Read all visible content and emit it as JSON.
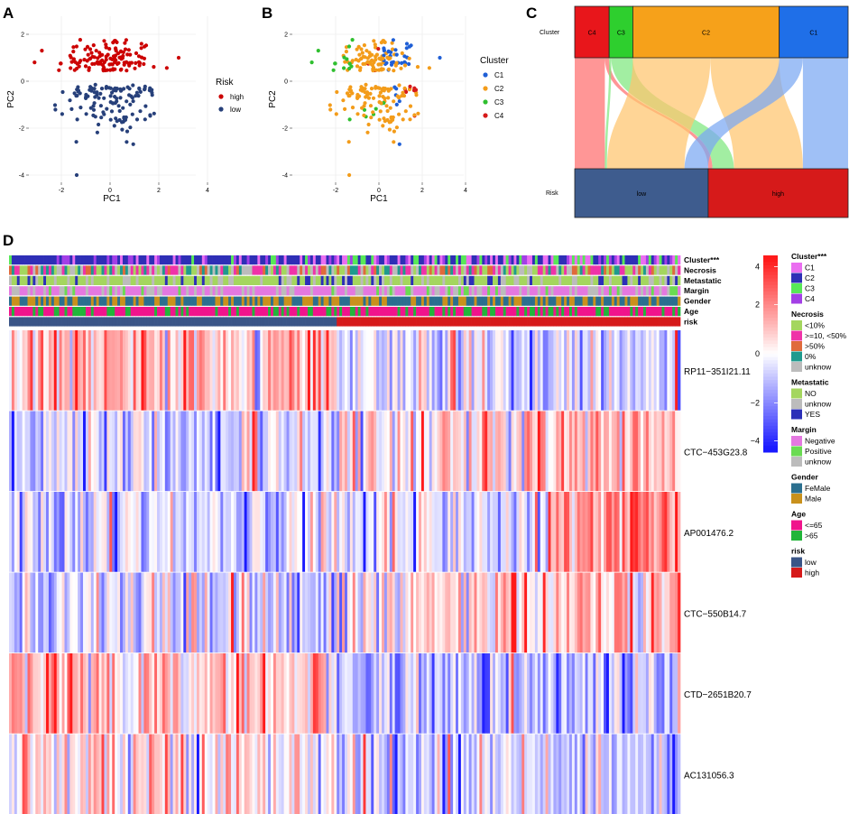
{
  "panels": {
    "a": "A",
    "b": "B",
    "c": "C",
    "d": "D"
  },
  "chart_data": [
    {
      "type": "scatter",
      "panel": "A",
      "xlabel": "PC1",
      "ylabel": "PC2",
      "xlim": [
        -3.4,
        4.1
      ],
      "ylim": [
        -4.3,
        2.7
      ],
      "xticks": [
        "-2",
        "0",
        "2",
        "4"
      ],
      "yticks": [
        "2",
        "0",
        "-2",
        "-4"
      ],
      "grid": true,
      "legend_title": "Risk",
      "legend_position": "right",
      "series": [
        {
          "name": "high",
          "color": "#cc0000",
          "n": 130
        },
        {
          "name": "low",
          "color": "#27407a",
          "n": 124
        }
      ]
    },
    {
      "type": "scatter",
      "panel": "B",
      "xlabel": "PC1",
      "ylabel": "PC2",
      "xlim": [
        -3.4,
        4.1
      ],
      "ylim": [
        -4.3,
        2.7
      ],
      "xticks": [
        "-2",
        "0",
        "2",
        "4"
      ],
      "yticks": [
        "2",
        "0",
        "-2",
        "-4"
      ],
      "grid": true,
      "legend_title": "Cluster",
      "legend_position": "right",
      "series": [
        {
          "name": "C1",
          "color": "#1f5fd6",
          "n": 64
        },
        {
          "name": "C2",
          "color": "#f39c1a",
          "n": 136
        },
        {
          "name": "C3",
          "color": "#2fbf2f",
          "n": 22
        },
        {
          "name": "C4",
          "color": "#d61a1a",
          "n": 32
        }
      ]
    },
    {
      "type": "sankey",
      "panel": "C",
      "axes": [
        "Cluster",
        "Risk"
      ],
      "top_nodes": [
        {
          "name": "C4",
          "color": "#e8161b",
          "value": 32
        },
        {
          "name": "C3",
          "color": "#2ecf2e",
          "value": 22
        },
        {
          "name": "C2",
          "color": "#f6a11a",
          "value": 136
        },
        {
          "name": "C1",
          "color": "#1f6fe8",
          "value": 64
        }
      ],
      "bottom_nodes": [
        {
          "name": "low",
          "color": "#3e5c8e",
          "value": 124
        },
        {
          "name": "high",
          "color": "#d61a1a",
          "value": 130
        }
      ],
      "flows": [
        {
          "from": "C4",
          "to": "low",
          "value": 28
        },
        {
          "from": "C4",
          "to": "high",
          "value": 4
        },
        {
          "from": "C3",
          "to": "low",
          "value": 2
        },
        {
          "from": "C3",
          "to": "high",
          "value": 20
        },
        {
          "from": "C2",
          "to": "low",
          "value": 72
        },
        {
          "from": "C2",
          "to": "high",
          "value": 64
        },
        {
          "from": "C1",
          "to": "low",
          "value": 22
        },
        {
          "from": "C1",
          "to": "high",
          "value": 42
        }
      ]
    },
    {
      "type": "heatmap",
      "panel": "D",
      "genes": [
        "RP11−351I21.11",
        "CTC−453G23.8",
        "AP001476.2",
        "CTC−550B14.7",
        "CTD−2651B20.7",
        "AC131056.3"
      ],
      "annotation_rows": [
        "Cluster***",
        "Necrosis",
        "Metastatic",
        "Margin",
        "Gender",
        "Age",
        "risk"
      ],
      "samples": {
        "total": 254,
        "low": 124,
        "high": 130
      },
      "color_scale": {
        "min": -4,
        "max": 4,
        "ticks": [
          "4",
          "2",
          "0",
          "−2",
          "−4"
        ],
        "low": "#1a1aff",
        "mid": "#ffffff",
        "high": "#ff1a1a"
      },
      "legends": [
        {
          "title": "Cluster***",
          "items": [
            {
              "label": "C1",
              "color": "#ea6ef0"
            },
            {
              "label": "C2",
              "color": "#2e2fb6"
            },
            {
              "label": "C3",
              "color": "#57e857"
            },
            {
              "label": "C4",
              "color": "#a33fe6"
            }
          ]
        },
        {
          "title": "Necrosis",
          "items": [
            {
              "label": "<10%",
              "color": "#a4d65e"
            },
            {
              "label": ">=10, <50%",
              "color": "#ef33a8"
            },
            {
              "label": ">50%",
              "color": "#e06a3b"
            },
            {
              "label": "0%",
              "color": "#1f9a8e"
            },
            {
              "label": "unknow",
              "color": "#bcbcbc"
            }
          ]
        },
        {
          "title": "Metastatic",
          "items": [
            {
              "label": "NO",
              "color": "#a4d65e"
            },
            {
              "label": "unknow",
              "color": "#bcbcbc"
            },
            {
              "label": "YES",
              "color": "#2c2fb8"
            }
          ]
        },
        {
          "title": "Margin",
          "items": [
            {
              "label": "Negative",
              "color": "#e478e0"
            },
            {
              "label": "Positive",
              "color": "#6adb52"
            },
            {
              "label": "unknow",
              "color": "#bcbcbc"
            }
          ]
        },
        {
          "title": "Gender",
          "items": [
            {
              "label": "FeMale",
              "color": "#2b6f8f"
            },
            {
              "label": "Male",
              "color": "#c9911c"
            }
          ]
        },
        {
          "title": "Age",
          "items": [
            {
              "label": "<=65",
              "color": "#f0148c"
            },
            {
              "label": ">65",
              "color": "#22b53a"
            }
          ]
        },
        {
          "title": "risk",
          "items": [
            {
              "label": "low",
              "color": "#3a5587"
            },
            {
              "label": "high",
              "color": "#d61a1a"
            }
          ]
        }
      ]
    }
  ]
}
